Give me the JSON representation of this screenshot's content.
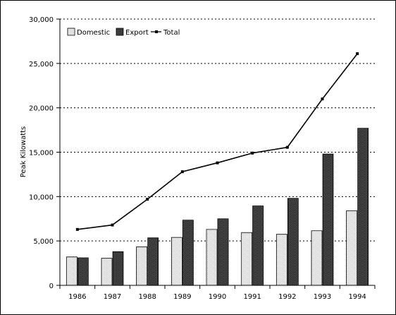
{
  "chart_data": {
    "type": "bar",
    "title": "",
    "xlabel": "",
    "ylabel": "Peak Kilowatts",
    "ylim": [
      0,
      30000
    ],
    "yticks": [
      0,
      5000,
      10000,
      15000,
      20000,
      25000,
      30000
    ],
    "ytick_labels": [
      "0",
      "5,000",
      "10,000",
      "15,000",
      "20,000",
      "25,000",
      "30,000"
    ],
    "categories": [
      "1986",
      "1987",
      "1988",
      "1989",
      "1990",
      "1991",
      "1992",
      "1993",
      "1994"
    ],
    "series": [
      {
        "name": "Domestic",
        "kind": "bar",
        "color": "#e2e2e2",
        "values": [
          3200,
          3050,
          4350,
          5400,
          6300,
          5950,
          5750,
          6150,
          8400
        ]
      },
      {
        "name": "Export",
        "kind": "bar",
        "color": "#4a4a4a",
        "values": [
          3100,
          3800,
          5350,
          7350,
          7500,
          8950,
          9800,
          14800,
          17700
        ]
      },
      {
        "name": "Total",
        "kind": "line",
        "color": "#000000",
        "values": [
          6300,
          6800,
          9700,
          12800,
          13800,
          14900,
          15550,
          21000,
          26100
        ]
      }
    ],
    "grid": "horizontal dotted",
    "legend_position": "top-left"
  }
}
